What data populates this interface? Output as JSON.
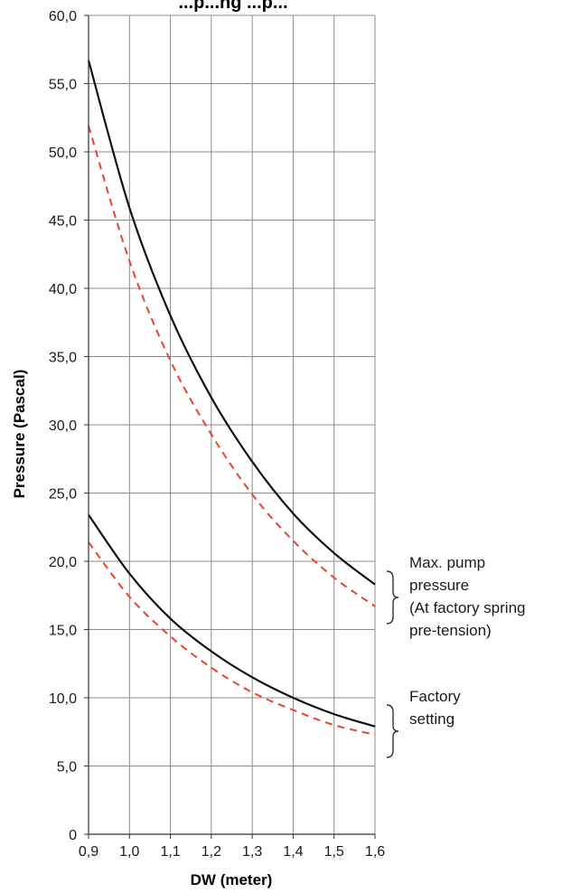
{
  "chart_data": {
    "type": "line",
    "title": "...p...ng ...p...",
    "xlabel": "DW (meter)",
    "ylabel": "Pressure (Pascal)",
    "xlim": [
      0.9,
      1.6
    ],
    "ylim": [
      0,
      60
    ],
    "x_ticks": [
      "0,9",
      "1,0",
      "1,1",
      "1,2",
      "1,3",
      "1,4",
      "1,5",
      "1,6"
    ],
    "y_ticks": [
      "0",
      "5,0",
      "10,0",
      "15,0",
      "20,0",
      "25,0",
      "30,0",
      "35,0",
      "40,0",
      "45,0",
      "50,0",
      "55,0",
      "60,0"
    ],
    "grid": true,
    "colors": {
      "solid": "#111111",
      "dashed": "#e8432a",
      "grid": "#8c8c8c"
    },
    "x": [
      0.9,
      1.0,
      1.1,
      1.2,
      1.3,
      1.4,
      1.5,
      1.6
    ],
    "series": [
      {
        "style": "solid",
        "group": "max",
        "values": [
          56.7,
          45.9,
          38.0,
          32.0,
          27.3,
          23.5,
          20.6,
          18.3
        ]
      },
      {
        "style": "dashed",
        "group": "max",
        "values": [
          51.9,
          42.0,
          34.7,
          29.3,
          24.9,
          21.5,
          18.8,
          16.7
        ]
      },
      {
        "style": "solid",
        "group": "factory",
        "values": [
          23.4,
          19.1,
          15.8,
          13.4,
          11.5,
          10.0,
          8.8,
          7.9
        ]
      },
      {
        "style": "dashed",
        "group": "factory",
        "values": [
          21.4,
          17.4,
          14.5,
          12.2,
          10.4,
          9.1,
          8.0,
          7.3
        ]
      }
    ],
    "annotations": [
      {
        "group": "max",
        "lines": [
          "Max. pump",
          "pressure",
          "(At factory spring",
          "pre-tension)"
        ]
      },
      {
        "group": "factory",
        "lines": [
          "Factory",
          "setting"
        ]
      }
    ]
  }
}
